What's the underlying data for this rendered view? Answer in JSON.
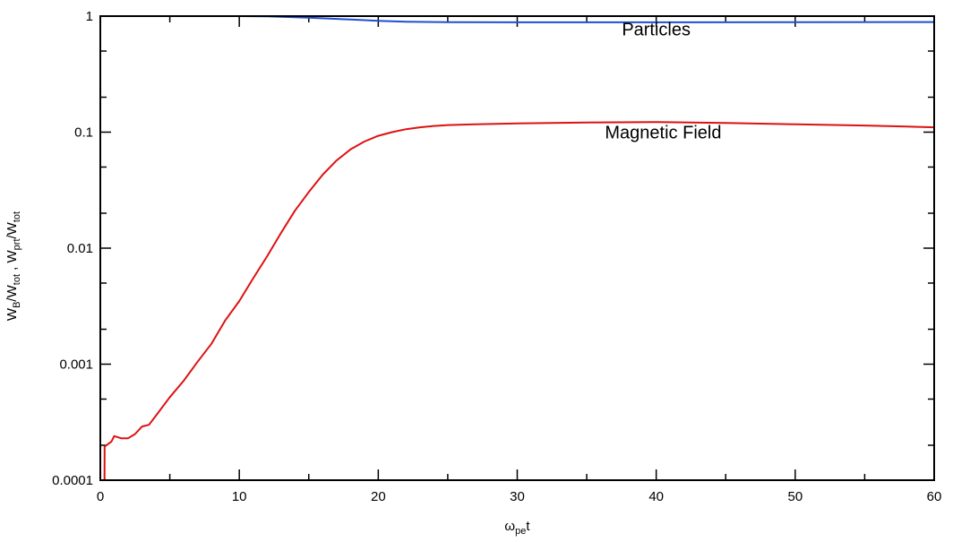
{
  "chart_data": {
    "type": "line",
    "xlabel": {
      "main": "ω",
      "sub": "pe",
      "tail": "t"
    },
    "ylabel": {
      "parts": [
        {
          "t": "W",
          "sub": false
        },
        {
          "t": "B",
          "sub": true
        },
        {
          "t": "/W",
          "sub": false
        },
        {
          "t": "tot",
          "sub": true
        },
        {
          "t": " ,  W",
          "sub": false
        },
        {
          "t": "prt",
          "sub": true
        },
        {
          "t": "/W",
          "sub": false
        },
        {
          "t": "tot",
          "sub": true
        }
      ]
    },
    "xlim": [
      0,
      60
    ],
    "ylim": [
      0.0001,
      1
    ],
    "yscale": "log",
    "x_ticks": [
      0,
      10,
      20,
      30,
      40,
      50,
      60
    ],
    "x_tick_labels": [
      "0",
      "10",
      "20",
      "30",
      "40",
      "50",
      "60"
    ],
    "y_ticks": [
      0.0001,
      0.001,
      0.01,
      0.1,
      1
    ],
    "y_tick_labels": [
      "0.0001",
      "0.001",
      "0.01",
      "0.1",
      "1"
    ],
    "grid": false,
    "legend": "none",
    "series": [
      {
        "name": "Particles",
        "color": "#1f4fd0",
        "label_at": [
          40,
          0.68
        ],
        "x": [
          0,
          5,
          10,
          12,
          15,
          18,
          20,
          22,
          25,
          30,
          40,
          50,
          60
        ],
        "y": [
          1.0,
          1.0,
          1.0,
          0.995,
          0.97,
          0.935,
          0.91,
          0.895,
          0.887,
          0.885,
          0.885,
          0.887,
          0.89
        ]
      },
      {
        "name": "Magnetic Field",
        "color": "#dd1111",
        "label_at": [
          40.5,
          0.088
        ],
        "x": [
          0.3,
          0.31,
          0.8,
          1.0,
          1.5,
          2.0,
          2.5,
          3.0,
          3.5,
          4.0,
          5.0,
          6.0,
          7.0,
          8.0,
          9.0,
          10.0,
          11.0,
          12.0,
          13.0,
          14.0,
          15.0,
          16.0,
          17.0,
          18.0,
          19.0,
          20.0,
          21.0,
          22.0,
          23.0,
          24.0,
          25.0,
          27.0,
          30.0,
          35.0,
          40.0,
          45.0,
          50.0,
          55.0,
          60.0
        ],
        "y": [
          0.0001,
          0.000195,
          0.000215,
          0.00024,
          0.00023,
          0.00023,
          0.00025,
          0.00029,
          0.0003,
          0.00036,
          0.00052,
          0.00072,
          0.00105,
          0.0015,
          0.0024,
          0.0035,
          0.0055,
          0.0085,
          0.0135,
          0.021,
          0.0305,
          0.043,
          0.057,
          0.071,
          0.083,
          0.093,
          0.1,
          0.106,
          0.11,
          0.113,
          0.115,
          0.117,
          0.119,
          0.121,
          0.122,
          0.12,
          0.117,
          0.114,
          0.11
        ]
      }
    ]
  }
}
